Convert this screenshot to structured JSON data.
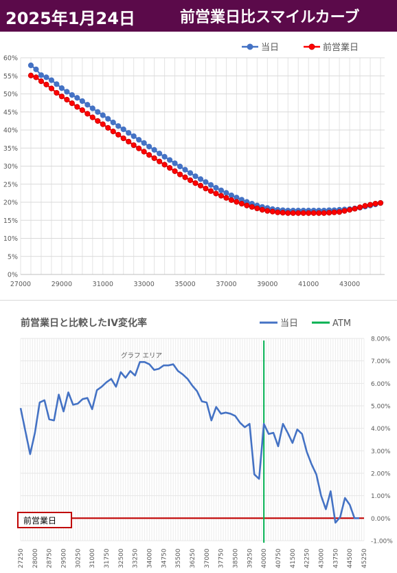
{
  "header": {
    "date": "2025年1月24日",
    "title": "前営業日比スマイルカーブ"
  },
  "colors": {
    "header_bg": "#5b0a4a",
    "today": "#4472c4",
    "prev": "#ff0000",
    "prev_marker_edge": "#cc0000",
    "atm": "#00b050",
    "baseline": "#c00000"
  },
  "chart_data": [
    {
      "type": "line",
      "legend": [
        "当日",
        "前営業日"
      ],
      "legend_position": "top-right",
      "xlim": [
        27000,
        44700
      ],
      "ylim": [
        0,
        60
      ],
      "x_ticks": [
        "27000",
        "29000",
        "31000",
        "33000",
        "35000",
        "37000",
        "39000",
        "41000",
        "43000"
      ],
      "y_ticks": [
        "0%",
        "5%",
        "10%",
        "15%",
        "20%",
        "25%",
        "30%",
        "35%",
        "40%",
        "45%",
        "50%",
        "55%",
        "60%"
      ],
      "grid": true,
      "x": [
        27500,
        27750,
        28000,
        28250,
        28500,
        28750,
        29000,
        29250,
        29500,
        29750,
        30000,
        30250,
        30500,
        30750,
        31000,
        31250,
        31500,
        31750,
        32000,
        32250,
        32500,
        32750,
        33000,
        33250,
        33500,
        33750,
        34000,
        34250,
        34500,
        34750,
        35000,
        35250,
        35500,
        35750,
        36000,
        36250,
        36500,
        36750,
        37000,
        37250,
        37500,
        37750,
        38000,
        38250,
        38500,
        38750,
        39000,
        39250,
        39500,
        39750,
        40000,
        40250,
        40500,
        40750,
        41000,
        41250,
        41500,
        41750,
        42000,
        42250,
        42500,
        42750,
        43000,
        43250,
        43500,
        43750,
        44000,
        44250,
        44500
      ],
      "series": [
        {
          "name": "当日",
          "values": [
            57.9,
            56.8,
            55.2,
            54.6,
            53.8,
            52.7,
            51.6,
            50.6,
            49.7,
            48.9,
            48.0,
            47.0,
            46.0,
            45.0,
            44.1,
            43.1,
            42.1,
            41.1,
            40.2,
            39.2,
            38.3,
            37.3,
            36.4,
            35.4,
            34.5,
            33.5,
            32.6,
            31.7,
            30.8,
            29.9,
            29.0,
            28.1,
            27.2,
            26.4,
            25.6,
            24.8,
            24.0,
            23.3,
            22.6,
            21.9,
            21.3,
            20.7,
            20.1,
            19.6,
            19.1,
            18.7,
            18.4,
            18.1,
            17.9,
            17.8,
            17.7,
            17.7,
            17.7,
            17.7,
            17.7,
            17.7,
            17.7,
            17.7,
            17.8,
            17.8,
            17.9,
            18.0,
            18.1,
            18.3,
            18.5,
            18.8,
            19.1,
            19.4,
            19.8
          ]
        },
        {
          "name": "前営業日",
          "values": [
            55.1,
            54.6,
            53.5,
            52.6,
            51.5,
            50.3,
            49.3,
            48.4,
            47.4,
            46.4,
            45.5,
            44.5,
            43.5,
            42.5,
            41.6,
            40.6,
            39.6,
            38.7,
            37.7,
            36.8,
            35.8,
            34.9,
            34.0,
            33.1,
            32.2,
            31.3,
            30.4,
            29.5,
            28.6,
            27.7,
            26.9,
            26.1,
            25.3,
            24.6,
            23.8,
            23.1,
            22.4,
            21.8,
            21.2,
            20.6,
            20.1,
            19.6,
            19.1,
            18.7,
            18.3,
            17.9,
            17.6,
            17.4,
            17.2,
            17.1,
            17.0,
            17.0,
            17.0,
            17.0,
            17.0,
            17.0,
            17.0,
            17.0,
            17.1,
            17.2,
            17.3,
            17.6,
            17.9,
            18.2,
            18.6,
            19.0,
            19.3,
            19.6,
            19.8
          ]
        }
      ]
    },
    {
      "type": "line",
      "title": "前営業日と比較したIV変化率",
      "legend": [
        "当日",
        "ATM"
      ],
      "legend_position": "top-right",
      "y_axis_side": "right",
      "ylim": [
        -1,
        8
      ],
      "y_ticks": [
        "8.00%",
        "7.00%",
        "6.00%",
        "5.00%",
        "4.00%",
        "3.00%",
        "2.00%",
        "1.00%",
        "0.00%",
        "-1.00%"
      ],
      "x_ticks": [
        "27250",
        "28000",
        "28750",
        "29500",
        "30250",
        "31000",
        "31750",
        "32500",
        "33250",
        "34000",
        "34750",
        "35500",
        "36250",
        "37000",
        "37750",
        "38500",
        "39250",
        "40000",
        "40750",
        "41500",
        "42250",
        "43000",
        "43750",
        "44500",
        "45250"
      ],
      "x_start": 27250,
      "x_step": 125,
      "x_end": 45250,
      "grid": true,
      "atm_x": 40000,
      "atm_label": "ATM",
      "plot_area_label": "グラフ エリア",
      "baseline_label": "前営業日",
      "series": [
        {
          "name": "当日",
          "points": [
            [
              27250,
              4.9
            ],
            [
              27750,
              2.85
            ],
            [
              28000,
              3.8
            ],
            [
              28250,
              5.15
            ],
            [
              28500,
              5.25
            ],
            [
              28750,
              4.4
            ],
            [
              29000,
              4.35
            ],
            [
              29250,
              5.5
            ],
            [
              29500,
              4.75
            ],
            [
              29750,
              5.6
            ],
            [
              30000,
              5.05
            ],
            [
              30250,
              5.1
            ],
            [
              30500,
              5.3
            ],
            [
              30750,
              5.35
            ],
            [
              31000,
              4.85
            ],
            [
              31250,
              5.7
            ],
            [
              31500,
              5.85
            ],
            [
              31750,
              6.05
            ],
            [
              32000,
              6.2
            ],
            [
              32250,
              5.85
            ],
            [
              32500,
              6.5
            ],
            [
              32750,
              6.25
            ],
            [
              33000,
              6.55
            ],
            [
              33250,
              6.35
            ],
            [
              33500,
              6.95
            ],
            [
              33750,
              6.95
            ],
            [
              34000,
              6.85
            ],
            [
              34250,
              6.6
            ],
            [
              34500,
              6.65
            ],
            [
              34750,
              6.8
            ],
            [
              35000,
              6.8
            ],
            [
              35250,
              6.85
            ],
            [
              35500,
              6.55
            ],
            [
              35750,
              6.4
            ],
            [
              36000,
              6.2
            ],
            [
              36250,
              5.9
            ],
            [
              36500,
              5.65
            ],
            [
              36750,
              5.2
            ],
            [
              37000,
              5.15
            ],
            [
              37250,
              4.35
            ],
            [
              37500,
              4.95
            ],
            [
              37750,
              4.65
            ],
            [
              38000,
              4.7
            ],
            [
              38250,
              4.65
            ],
            [
              38500,
              4.55
            ],
            [
              38750,
              4.25
            ],
            [
              39000,
              4.05
            ],
            [
              39250,
              4.2
            ],
            [
              39500,
              1.95
            ],
            [
              39750,
              1.75
            ],
            [
              40000,
              4.2
            ],
            [
              40250,
              3.75
            ],
            [
              40500,
              3.8
            ],
            [
              40750,
              3.2
            ],
            [
              41000,
              4.2
            ],
            [
              41250,
              3.8
            ],
            [
              41500,
              3.35
            ],
            [
              41750,
              3.95
            ],
            [
              42000,
              3.75
            ],
            [
              42250,
              2.95
            ],
            [
              42500,
              2.4
            ],
            [
              42750,
              1.95
            ],
            [
              43000,
              1.0
            ],
            [
              43250,
              0.4
            ],
            [
              43500,
              1.2
            ],
            [
              43750,
              -0.2
            ],
            [
              44000,
              0.05
            ],
            [
              44250,
              0.9
            ],
            [
              44500,
              0.6
            ],
            [
              44750,
              0.0
            ],
            [
              45000,
              0.0
            ]
          ]
        }
      ]
    }
  ]
}
